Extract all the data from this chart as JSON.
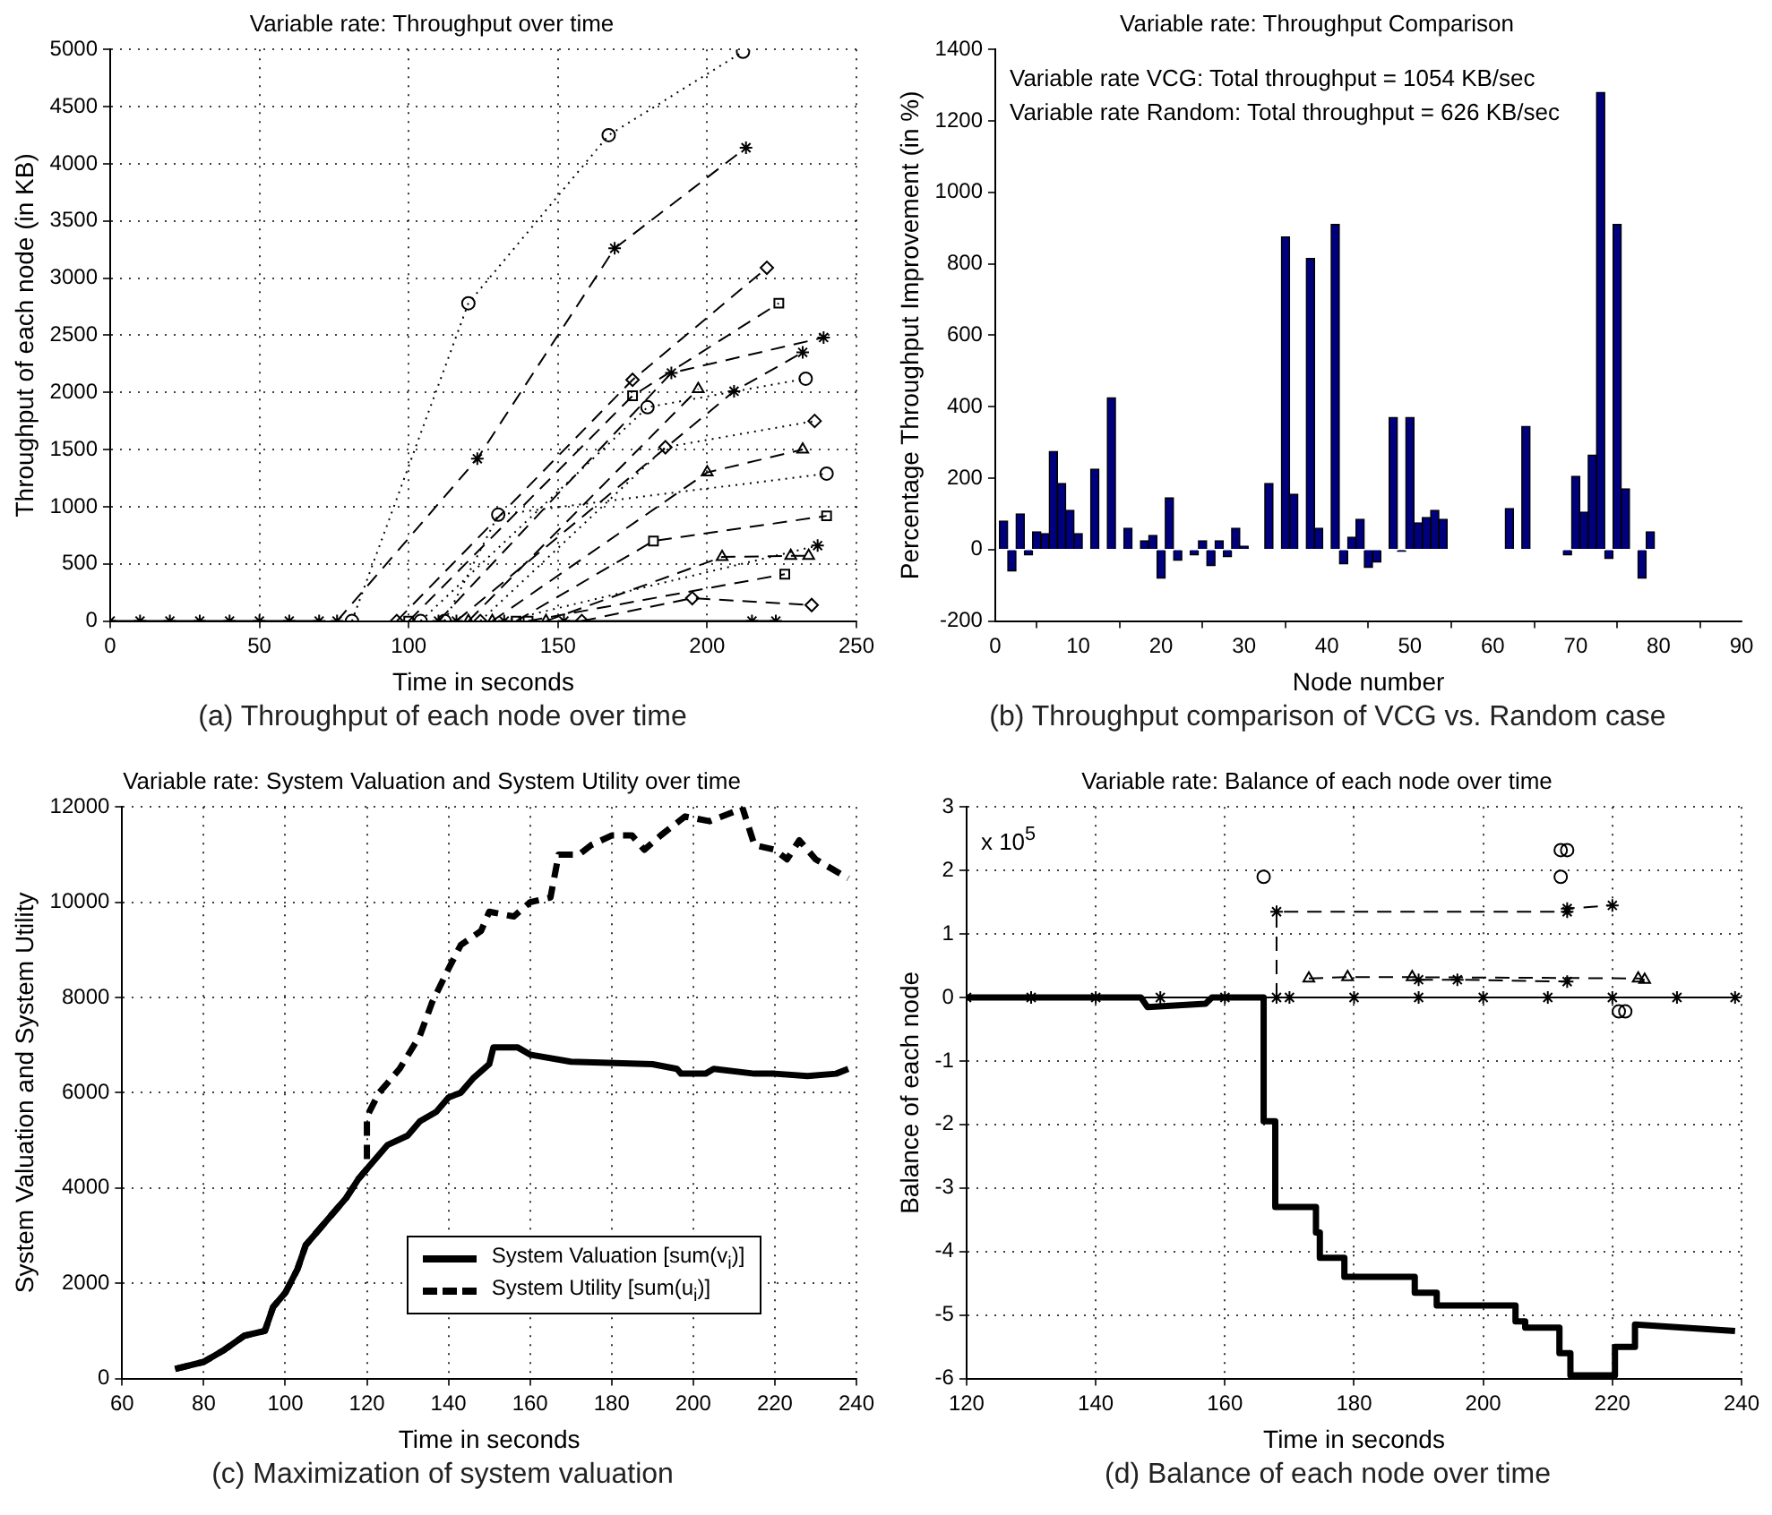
{
  "chart_data": [
    {
      "type": "line",
      "title": "Variable rate: Throughput over time",
      "xlabel": "Time in seconds",
      "ylabel": "Throughput of each node (in KB)",
      "xlim": [
        0,
        250
      ],
      "xticks": [
        0,
        50,
        100,
        150,
        200,
        250
      ],
      "ylim": [
        0,
        5000
      ],
      "yticks": [
        0,
        500,
        1000,
        1500,
        2000,
        2500,
        3000,
        3500,
        4000,
        4500,
        5000
      ],
      "grid": true,
      "legend": false,
      "annotations": [
        "(a) Throughput of each node over time"
      ],
      "series": [
        {
          "color": "#000000",
          "marker": "cross",
          "line_style": "solid",
          "x": [
            0,
            10,
            20,
            30,
            40,
            50,
            60,
            70
          ],
          "values": [
            0,
            0,
            0,
            0,
            0,
            0,
            0,
            0
          ]
        },
        {
          "color": "#000000",
          "marker": "circle",
          "line_style": "dotted",
          "x": [
            81,
            120,
            167,
            212
          ],
          "values": [
            0,
            2780,
            4250,
            4980
          ]
        },
        {
          "color": "#000000",
          "marker": "cross",
          "line_style": "dashed",
          "x": [
            76,
            123,
            169,
            213
          ],
          "values": [
            0,
            1420,
            3260,
            4140
          ]
        },
        {
          "color": "#000000",
          "marker": "diamond",
          "line_style": "dashed",
          "x": [
            96,
            175,
            220
          ],
          "values": [
            0,
            2110,
            3090
          ]
        },
        {
          "color": "#000000",
          "marker": "square",
          "line_style": "dashed",
          "x": [
            100,
            175,
            224
          ],
          "values": [
            0,
            1970,
            2780
          ]
        },
        {
          "color": "#000000",
          "marker": "cross",
          "line_style": "dashed",
          "x": [
            110,
            188,
            239
          ],
          "values": [
            0,
            2170,
            2480
          ]
        },
        {
          "color": "#000000",
          "marker": "cross",
          "line_style": "dashed",
          "x": [
            116,
            209,
            232
          ],
          "values": [
            0,
            2010,
            2350
          ]
        },
        {
          "color": "#000000",
          "marker": "circle",
          "line_style": "dotted",
          "x": [
            104,
            180,
            233
          ],
          "values": [
            0,
            1870,
            2120
          ]
        },
        {
          "color": "#000000",
          "marker": "triangle",
          "line_style": "dashed",
          "x": [
            120,
            197
          ],
          "values": [
            0,
            2030
          ]
        },
        {
          "color": "#000000",
          "marker": "diamond",
          "line_style": "dotted",
          "x": [
            124,
            186,
            236
          ],
          "values": [
            0,
            1520,
            1750
          ]
        },
        {
          "color": "#000000",
          "marker": "triangle",
          "line_style": "dashed",
          "x": [
            128,
            200,
            232
          ],
          "values": [
            0,
            1300,
            1500
          ]
        },
        {
          "color": "#000000",
          "marker": "circle",
          "line_style": "dotted",
          "x": [
            112,
            130,
            240
          ],
          "values": [
            0,
            930,
            1290
          ]
        },
        {
          "color": "#000000",
          "marker": "square",
          "line_style": "dashed",
          "x": [
            136,
            182,
            240
          ],
          "values": [
            0,
            700,
            920
          ]
        },
        {
          "color": "#000000",
          "marker": "cross",
          "line_style": "dotted",
          "x": [
            132,
            237
          ],
          "values": [
            0,
            660
          ]
        },
        {
          "color": "#000000",
          "marker": "triangle",
          "line_style": "dashed",
          "x": [
            146,
            205,
            228,
            234
          ],
          "values": [
            0,
            560,
            570,
            570
          ]
        },
        {
          "color": "#000000",
          "marker": "square",
          "line_style": "dashed",
          "x": [
            140,
            226
          ],
          "values": [
            0,
            410
          ]
        },
        {
          "color": "#000000",
          "marker": "diamond",
          "line_style": "dashed",
          "x": [
            158,
            195,
            235
          ],
          "values": [
            0,
            200,
            140
          ]
        },
        {
          "color": "#000000",
          "marker": "cross",
          "line_style": "solid",
          "x": [
            152,
            215,
            223
          ],
          "values": [
            0,
            0,
            0
          ]
        }
      ]
    },
    {
      "type": "bar",
      "title": "Variable rate: Throughput Comparison",
      "xlabel": "Node number",
      "ylabel": "Percentage Throughput Improvement (in %)",
      "xlim": [
        0,
        90
      ],
      "xticks": [
        0,
        10,
        20,
        30,
        40,
        50,
        60,
        70,
        80,
        90
      ],
      "ylim": [
        -200,
        1400
      ],
      "yticks": [
        -200,
        0,
        200,
        400,
        600,
        800,
        1000,
        1200,
        1400
      ],
      "legend": false,
      "annotations": [
        "Variable rate VCG: Total throughput = 1054 KB/sec",
        "Variable rate Random: Total throughput = 626 KB/sec",
        "(b) Throughput comparison of VCG vs. Random case"
      ],
      "x": [
        1,
        2,
        3,
        4,
        5,
        6,
        7,
        8,
        9,
        10,
        11,
        12,
        13,
        14,
        15,
        16,
        17,
        18,
        19,
        20,
        21,
        22,
        23,
        24,
        25,
        26,
        27,
        28,
        29,
        30,
        31,
        32,
        33,
        34,
        35,
        36,
        37,
        38,
        39,
        40,
        41,
        42,
        43,
        44,
        45,
        46,
        47,
        48,
        49,
        50,
        51,
        52,
        53,
        54,
        55,
        56,
        57,
        58,
        59,
        60,
        61,
        62,
        63,
        64,
        65,
        66,
        67,
        68,
        69,
        70,
        71,
        72,
        73,
        74,
        75,
        76,
        77,
        78,
        79,
        80
      ],
      "series": [
        {
          "color": "#00007f",
          "values": [
            80,
            -60,
            100,
            -15,
            50,
            45,
            275,
            185,
            110,
            45,
            0,
            225,
            0,
            425,
            0,
            60,
            0,
            25,
            40,
            -80,
            145,
            -30,
            0,
            -15,
            25,
            -45,
            25,
            -20,
            60,
            10,
            0,
            0,
            185,
            0,
            875,
            155,
            0,
            815,
            60,
            0,
            910,
            -40,
            35,
            85,
            -50,
            -35,
            0,
            370,
            -5,
            370,
            75,
            90,
            110,
            85,
            0,
            0,
            0,
            0,
            0,
            0,
            0,
            115,
            0,
            345,
            0,
            0,
            0,
            0,
            -15,
            205,
            105,
            265,
            1280,
            -25,
            910,
            170,
            0,
            -80,
            50,
            0
          ]
        }
      ]
    },
    {
      "type": "line",
      "title": "Variable rate: System Valuation and System Utility over time",
      "xlabel": "Time in seconds",
      "ylabel": "System Valuation and System Utility",
      "xlim": [
        60,
        240
      ],
      "xticks": [
        60,
        80,
        100,
        120,
        140,
        160,
        180,
        200,
        220,
        240
      ],
      "ylim": [
        0,
        12000
      ],
      "yticks": [
        0,
        2000,
        4000,
        6000,
        8000,
        10000,
        12000
      ],
      "grid": true,
      "legend": "bottom right",
      "annotations": [
        "(c) Maximization of system valuation"
      ],
      "series": [
        {
          "name": "System Valuation [sum(v$_{i}$)]",
          "color": "#000000",
          "marker": "none",
          "line_style": "solid",
          "x": [
            73,
            80,
            85,
            90,
            95,
            97,
            100,
            103,
            105,
            110,
            115,
            118,
            120,
            125,
            130,
            133,
            137,
            140,
            143,
            146,
            150,
            151,
            157,
            160,
            170,
            190,
            196,
            197,
            203,
            205,
            215,
            220,
            228,
            235,
            238
          ],
          "values": [
            200,
            350,
            600,
            900,
            1000,
            1500,
            1800,
            2300,
            2800,
            3300,
            3800,
            4200,
            4400,
            4900,
            5100,
            5400,
            5600,
            5900,
            6000,
            6300,
            6600,
            6950,
            6950,
            6800,
            6650,
            6600,
            6500,
            6400,
            6400,
            6500,
            6400,
            6400,
            6350,
            6400,
            6500
          ]
        },
        {
          "name": "System Utility [sum(u$_{i}$)]",
          "color": "#000000",
          "marker": "none",
          "line_style": "dashed",
          "x": [
            73,
            80,
            85,
            90,
            95,
            97,
            100,
            103,
            105,
            110,
            115,
            118,
            120,
            120,
            123,
            128,
            133,
            136,
            140,
            143,
            148,
            150,
            156,
            160,
            165,
            167,
            172,
            175,
            180,
            185,
            188,
            192,
            198,
            204,
            210,
            212,
            215,
            220,
            223,
            226,
            230,
            234,
            238
          ],
          "values": [
            200,
            350,
            600,
            900,
            1000,
            1500,
            1800,
            2300,
            2800,
            3300,
            3800,
            4200,
            4400,
            5500,
            6000,
            6500,
            7200,
            7900,
            8600,
            9100,
            9400,
            9800,
            9700,
            10000,
            10100,
            11000,
            11000,
            11200,
            11400,
            11400,
            11100,
            11400,
            11800,
            11700,
            11900,
            12000,
            11200,
            11100,
            10900,
            11300,
            10900,
            10700,
            10500
          ]
        }
      ]
    },
    {
      "type": "line",
      "title": "Variable rate: Balance of each node over time",
      "xlabel": "Time in seconds",
      "ylabel": "Balance of each node",
      "xlim": [
        120,
        240
      ],
      "xticks": [
        120,
        140,
        160,
        180,
        200,
        220,
        240
      ],
      "ylim": [
        -6,
        3
      ],
      "yticks": [
        -6,
        -5,
        -4,
        -3,
        -2,
        -1,
        0,
        1,
        2,
        3
      ],
      "grid": true,
      "legend": false,
      "annotations": [
        "x 10$^{5}$",
        "(d) Balance of each node over time"
      ],
      "series": [
        {
          "color": "#000000",
          "marker": "cross",
          "line_style": "solid",
          "x": [
            120,
            130,
            140,
            150,
            160,
            170,
            180,
            190,
            200,
            210,
            220,
            230,
            239
          ],
          "values": [
            0,
            0,
            0,
            0,
            0,
            0,
            0,
            0,
            0,
            0,
            0,
            0,
            0
          ]
        },
        {
          "color": "#000000",
          "marker": "none",
          "line_style": "solid",
          "x": [
            120,
            147,
            148,
            157,
            158,
            166,
            166,
            167.8,
            167.8,
            174.1,
            174.1,
            174.7,
            174.7,
            178.5,
            178.5,
            189.4,
            189.4,
            192.8,
            192.8,
            205,
            205,
            206.5,
            206.5,
            211.8,
            211.8,
            213.5,
            213.5,
            220.4,
            220.4,
            223.5,
            223.5,
            239
          ],
          "values": [
            0,
            0,
            -0.15,
            -0.1,
            0,
            0,
            -1.95,
            -1.95,
            -3.3,
            -3.3,
            -3.7,
            -3.7,
            -4.1,
            -4.1,
            -4.4,
            -4.4,
            -4.65,
            -4.65,
            -4.85,
            -4.85,
            -5.1,
            -5.1,
            -5.2,
            -5.2,
            -5.6,
            -5.6,
            -5.95,
            -5.95,
            -5.5,
            -5.5,
            -5.15,
            -5.25
          ]
        },
        {
          "color": "#000000",
          "marker": "cross",
          "line_style": "dashed",
          "x": [
            168,
            168,
            213,
            213,
            220
          ],
          "values": [
            0,
            1.35,
            1.35,
            1.4,
            1.45
          ]
        },
        {
          "color": "#000000",
          "marker": "triangle",
          "line_style": "dashed",
          "x": [
            173,
            179,
            189,
            224,
            225
          ],
          "values": [
            0.3,
            0.32,
            0.32,
            0.3,
            0.28
          ]
        },
        {
          "color": "#000000",
          "marker": "cross",
          "line_style": "dashed",
          "x": [
            190,
            196,
            213
          ],
          "values": [
            0.28,
            0.28,
            0.25
          ]
        },
        {
          "type": "scatter",
          "color": "#000000",
          "marker": "circle",
          "x": [
            166,
            212,
            212,
            213,
            221,
            222
          ],
          "values": [
            1.9,
            1.9,
            2.32,
            2.32,
            -0.22,
            -0.22
          ]
        }
      ]
    }
  ]
}
